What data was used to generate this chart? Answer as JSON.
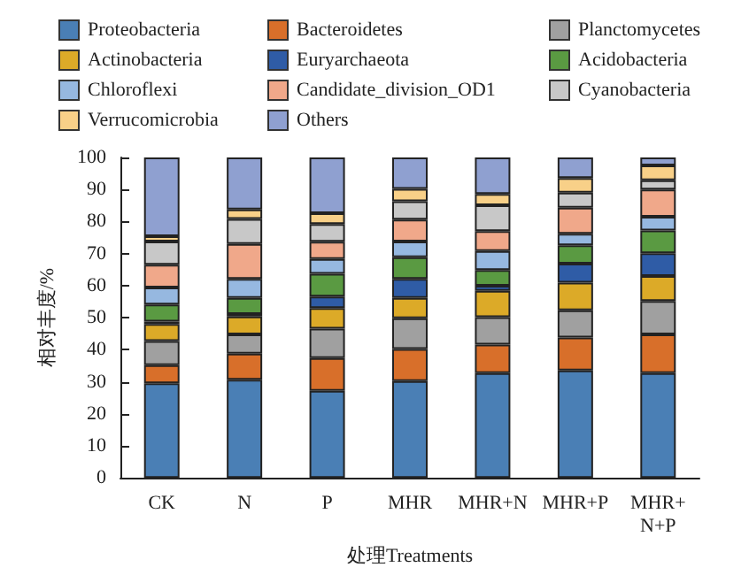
{
  "chart_data": {
    "type": "bar",
    "stacked": true,
    "xlabel": "处理Treatments",
    "ylabel": "相对丰度/%",
    "categories": [
      "CK",
      "N",
      "P",
      "MHR",
      "MHR+N",
      "MHR+P",
      "MHR+N+P"
    ],
    "ylim": [
      0,
      100
    ],
    "yticks": [
      0,
      10,
      20,
      30,
      40,
      50,
      60,
      70,
      80,
      90,
      100
    ],
    "grid": false,
    "legend": "top",
    "series": [
      {
        "name": "Proteobacteria",
        "color": "#4a7fb5",
        "values": [
          29.5,
          30.6,
          27.2,
          30.2,
          32.7,
          33.5,
          32.7
        ]
      },
      {
        "name": "Bacteroidetes",
        "color": "#d86f2a",
        "values": [
          5.7,
          8.2,
          10.2,
          10.0,
          8.9,
          10.3,
          12.1
        ]
      },
      {
        "name": "Planctomycetes",
        "color": "#a0a0a0",
        "values": [
          7.5,
          6.0,
          9.2,
          9.6,
          8.6,
          8.5,
          10.4
        ]
      },
      {
        "name": "Actinobacteria",
        "color": "#dcaa28",
        "values": [
          5.3,
          5.6,
          6.4,
          6.4,
          8.2,
          8.6,
          7.8
        ]
      },
      {
        "name": "Euryarchaeota",
        "color": "#2f5ca6",
        "values": [
          0.8,
          0.7,
          3.6,
          5.9,
          1.6,
          6.0,
          7.1
        ]
      },
      {
        "name": "Acidobacteria",
        "color": "#5a9a42",
        "values": [
          5.3,
          5.1,
          7.1,
          6.8,
          4.9,
          5.7,
          7.1
        ]
      },
      {
        "name": "Chloroflexi",
        "color": "#96b8e0",
        "values": [
          5.3,
          5.9,
          4.6,
          4.9,
          5.9,
          3.6,
          4.3
        ]
      },
      {
        "name": "Candidate_division_OD1",
        "color": "#f0a88a",
        "values": [
          7.1,
          10.9,
          5.4,
          6.8,
          6.2,
          8.1,
          8.5
        ]
      },
      {
        "name": "Cyanobacteria",
        "color": "#c8c8c8",
        "values": [
          7.3,
          7.8,
          5.5,
          5.7,
          8.1,
          4.7,
          2.9
        ]
      },
      {
        "name": "Verrucomicrobia",
        "color": "#f8d088",
        "values": [
          1.6,
          3.0,
          3.4,
          3.9,
          3.5,
          4.6,
          4.6
        ]
      },
      {
        "name": "Others",
        "color": "#8fa0d0",
        "values": [
          24.6,
          16.2,
          17.4,
          9.8,
          11.4,
          6.4,
          2.5
        ]
      }
    ]
  }
}
